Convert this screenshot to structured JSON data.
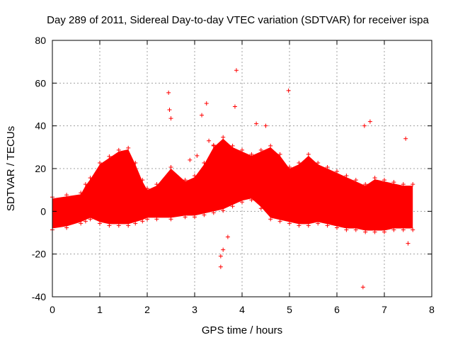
{
  "chart_data": {
    "type": "scatter",
    "title": "Day 289 of 2011, Sidereal Day-to-day VTEC variation (SDTVAR) for receiver ispa",
    "xlabel": "GPS time / hours",
    "ylabel": "SDTVAR / TECUs",
    "xlim": [
      0,
      8
    ],
    "ylim": [
      -40,
      80
    ],
    "xticks": [
      0,
      1,
      2,
      3,
      4,
      5,
      6,
      7,
      8
    ],
    "yticks": [
      -40,
      -20,
      0,
      20,
      40,
      60,
      80
    ],
    "grid": true,
    "marker": "+",
    "color": "#ff0000",
    "band": {
      "x": [
        0.0,
        0.3,
        0.6,
        0.7,
        0.8,
        1.0,
        1.2,
        1.4,
        1.6,
        1.75,
        1.9,
        2.0,
        2.2,
        2.5,
        2.8,
        3.0,
        3.2,
        3.4,
        3.6,
        3.8,
        4.0,
        4.2,
        4.4,
        4.6,
        4.8,
        5.0,
        5.2,
        5.4,
        5.6,
        5.8,
        6.0,
        6.2,
        6.4,
        6.6,
        6.8,
        7.0,
        7.2,
        7.4,
        7.6
      ],
      "low": [
        -8,
        -7,
        -5,
        -4,
        -3,
        -5,
        -6,
        -6,
        -6,
        -5,
        -4,
        -3,
        -3,
        -3,
        -2,
        -2,
        -1,
        0,
        1,
        3,
        5,
        6,
        2,
        -3,
        -4,
        -5,
        -6,
        -6,
        -5,
        -6,
        -7,
        -8,
        -8,
        -9,
        -9,
        -9,
        -8,
        -8,
        -8
      ],
      "high": [
        6,
        7,
        8,
        12,
        15,
        22,
        25,
        28,
        29,
        22,
        14,
        10,
        12,
        20,
        14,
        16,
        22,
        30,
        34,
        30,
        28,
        26,
        28,
        30,
        26,
        20,
        22,
        26,
        22,
        20,
        18,
        16,
        14,
        12,
        15,
        14,
        13,
        12,
        12
      ]
    },
    "outliers": {
      "x": [
        2.45,
        2.47,
        2.5,
        3.15,
        3.25,
        3.4,
        3.55,
        3.85,
        3.88,
        4.98,
        6.55,
        7.5,
        3.55,
        3.6,
        3.7,
        6.58,
        6.7,
        7.45,
        2.9,
        3.05,
        3.3,
        4.3,
        4.5
      ],
      "y": [
        55.5,
        47.5,
        43.5,
        45,
        50.5,
        31,
        -26,
        49,
        66,
        56.5,
        -35.5,
        -15,
        -21,
        -18,
        -12,
        40,
        42,
        34,
        24,
        26,
        33,
        41,
        40
      ]
    }
  }
}
